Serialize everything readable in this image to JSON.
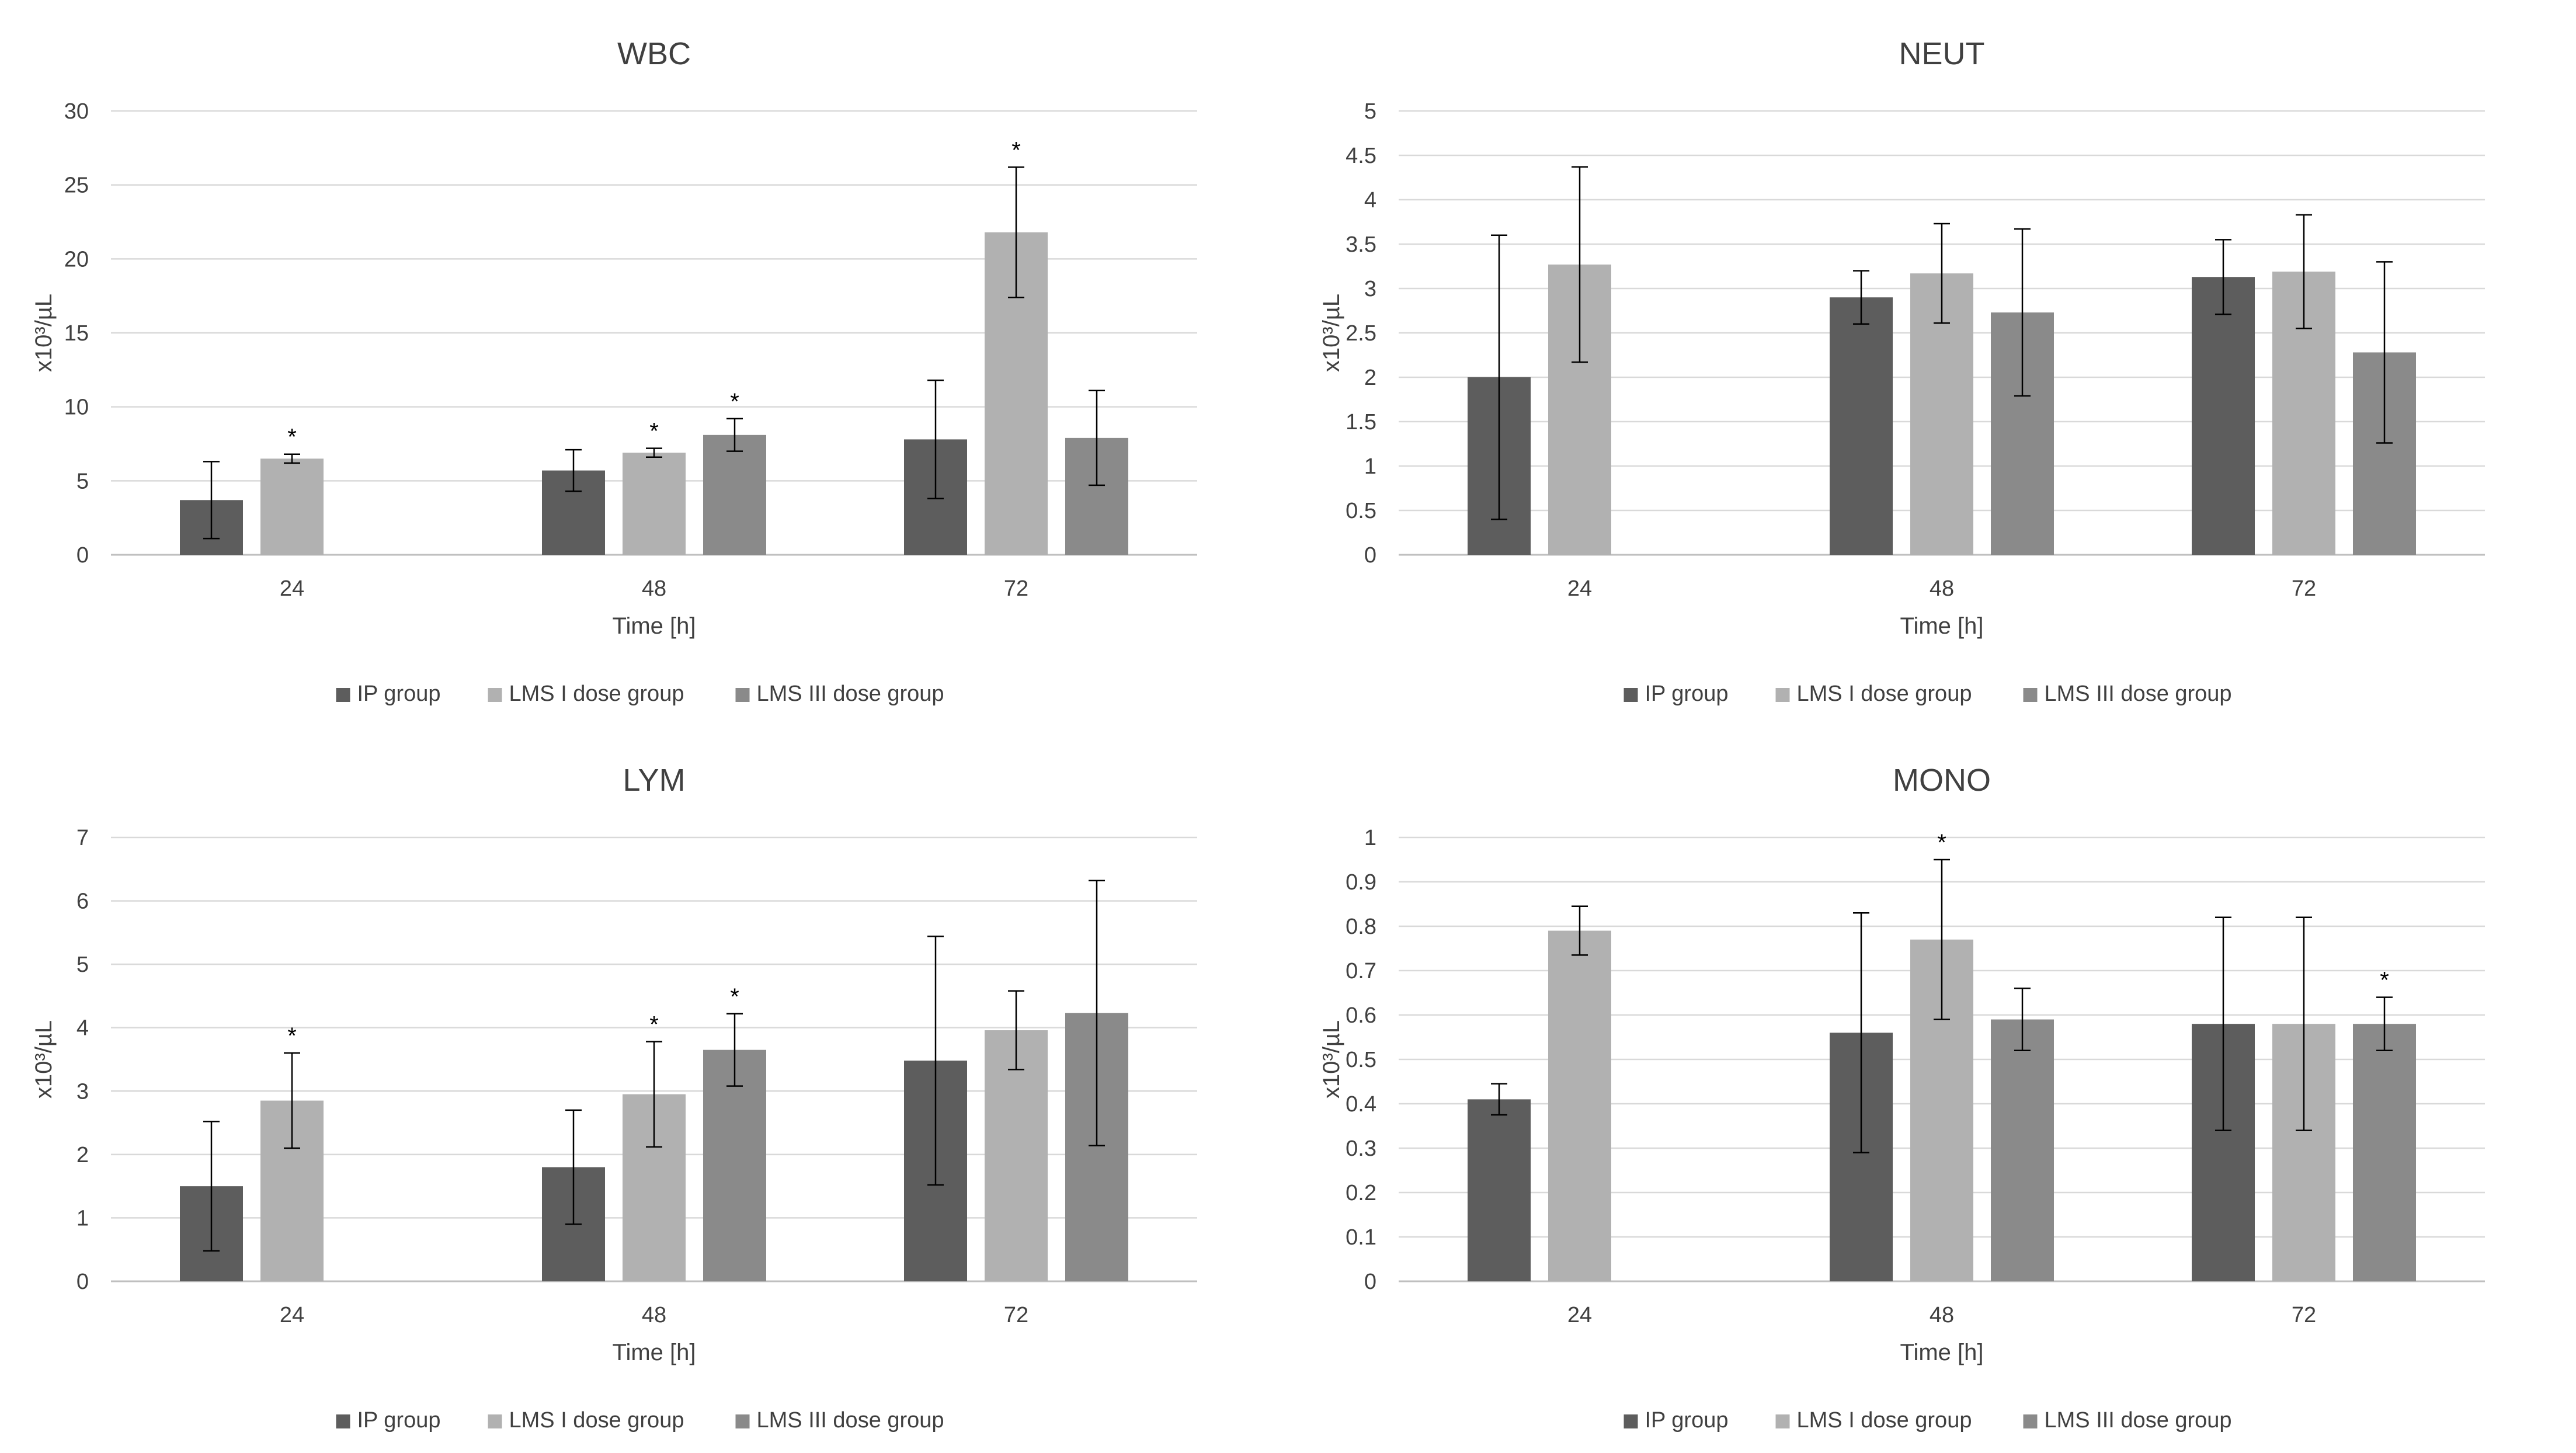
{
  "colors": {
    "ip": "#5d5d5d",
    "lms1": "#b1b1b1",
    "lms3": "#8a8a8a",
    "grid": "#d9d9d9",
    "text": "#404040"
  },
  "chart_data": [
    {
      "type": "bar",
      "title": "WBC",
      "xlabel": "Time [h]",
      "ylabel": "x10³/µL",
      "categories": [
        "24",
        "48",
        "72"
      ],
      "ylim": [
        0,
        30
      ],
      "yticks": [
        0,
        5,
        10,
        15,
        20,
        25,
        30
      ],
      "grid": true,
      "legend_position": "bottom",
      "series": [
        {
          "name": "IP group",
          "color_key": "ip",
          "values": [
            3.7,
            5.7,
            7.8
          ],
          "errors": [
            2.6,
            1.4,
            4.0
          ],
          "significant": [
            false,
            false,
            false
          ]
        },
        {
          "name": "LMS I dose group",
          "color_key": "lms1",
          "values": [
            6.5,
            6.9,
            21.8
          ],
          "errors": [
            0.3,
            0.3,
            4.4
          ],
          "significant": [
            true,
            true,
            true
          ]
        },
        {
          "name": "LMS III dose group",
          "color_key": "lms3",
          "values": [
            null,
            8.1,
            7.9
          ],
          "errors": [
            null,
            1.1,
            3.2
          ],
          "significant": [
            false,
            true,
            false
          ]
        }
      ]
    },
    {
      "type": "bar",
      "title": "NEUT",
      "xlabel": "Time [h]",
      "ylabel": "x10³/µL",
      "categories": [
        "24",
        "48",
        "72"
      ],
      "ylim": [
        0,
        5
      ],
      "yticks": [
        0,
        0.5,
        1,
        1.5,
        2,
        2.5,
        3,
        3.5,
        4,
        4.5,
        5
      ],
      "grid": true,
      "legend_position": "bottom",
      "series": [
        {
          "name": "IP group",
          "color_key": "ip",
          "values": [
            2.0,
            2.9,
            3.13
          ],
          "errors": [
            1.6,
            0.3,
            0.42
          ],
          "significant": [
            false,
            false,
            false
          ]
        },
        {
          "name": "LMS I dose group",
          "color_key": "lms1",
          "values": [
            3.27,
            3.17,
            3.19
          ],
          "errors": [
            1.1,
            0.56,
            0.64
          ],
          "significant": [
            false,
            false,
            false
          ]
        },
        {
          "name": "LMS III dose group",
          "color_key": "lms3",
          "values": [
            null,
            2.73,
            2.28
          ],
          "errors": [
            null,
            0.94,
            1.02
          ],
          "significant": [
            false,
            false,
            false
          ]
        }
      ]
    },
    {
      "type": "bar",
      "title": "LYM",
      "xlabel": "Time [h]",
      "ylabel": "x10³/µL",
      "categories": [
        "24",
        "48",
        "72"
      ],
      "ylim": [
        0,
        7
      ],
      "yticks": [
        0,
        1,
        2,
        3,
        4,
        5,
        6,
        7
      ],
      "grid": true,
      "legend_position": "bottom",
      "series": [
        {
          "name": "IP group",
          "color_key": "ip",
          "values": [
            1.5,
            1.8,
            3.48
          ],
          "errors": [
            1.02,
            0.9,
            1.96
          ],
          "significant": [
            false,
            false,
            false
          ]
        },
        {
          "name": "LMS I dose group",
          "color_key": "lms1",
          "values": [
            2.85,
            2.95,
            3.96
          ],
          "errors": [
            0.75,
            0.83,
            0.62
          ],
          "significant": [
            true,
            true,
            false
          ]
        },
        {
          "name": "LMS III dose group",
          "color_key": "lms3",
          "values": [
            null,
            3.65,
            4.23
          ],
          "errors": [
            null,
            0.57,
            2.09
          ],
          "significant": [
            false,
            true,
            false
          ]
        }
      ]
    },
    {
      "type": "bar",
      "title": "MONO",
      "xlabel": "Time [h]",
      "ylabel": "x10³/µL",
      "categories": [
        "24",
        "48",
        "72"
      ],
      "ylim": [
        0,
        1
      ],
      "yticks": [
        0,
        0.1,
        0.2,
        0.3,
        0.4,
        0.5,
        0.6,
        0.7,
        0.8,
        0.9,
        1
      ],
      "grid": true,
      "legend_position": "bottom",
      "series": [
        {
          "name": "IP group",
          "color_key": "ip",
          "values": [
            0.41,
            0.56,
            0.58
          ],
          "errors": [
            0.035,
            0.27,
            0.24
          ],
          "significant": [
            false,
            false,
            false
          ]
        },
        {
          "name": "LMS I dose group",
          "color_key": "lms1",
          "values": [
            0.79,
            0.77,
            0.58
          ],
          "errors": [
            0.055,
            0.18,
            0.24
          ],
          "significant": [
            false,
            true,
            false
          ]
        },
        {
          "name": "LMS III dose group",
          "color_key": "lms3",
          "values": [
            null,
            0.59,
            0.58
          ],
          "errors": [
            null,
            0.07,
            0.06
          ],
          "significant": [
            false,
            false,
            true
          ]
        }
      ]
    }
  ]
}
